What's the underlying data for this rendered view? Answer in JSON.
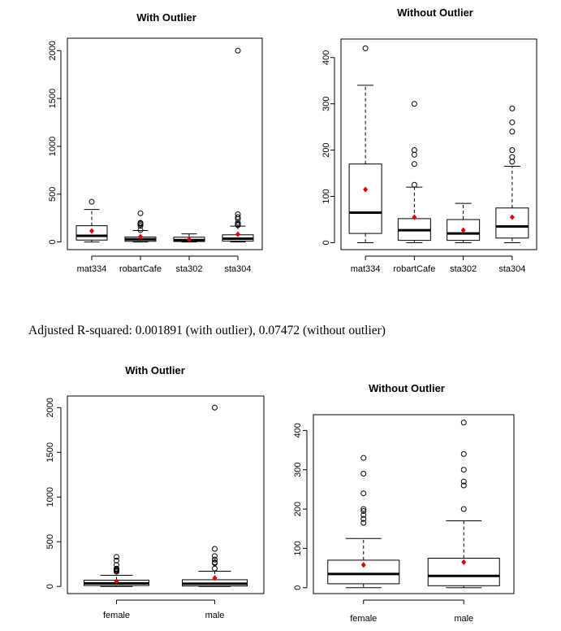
{
  "note": "Adjusted R-squared:  0.001891 (with outlier), 0.07472  (without outlier)",
  "chart_data": [
    {
      "type": "boxplot",
      "title": "With Outlier",
      "categories": [
        "mat334",
        "robartCafe",
        "sta302",
        "sta304"
      ],
      "yticks": [
        0,
        500,
        1000,
        1500,
        2000
      ],
      "ylim": [
        -80,
        2130
      ],
      "boxes": [
        {
          "min": 0,
          "q1": 20,
          "median": 65,
          "q3": 170,
          "max": 340,
          "mean": 115,
          "outliers": [
            420
          ]
        },
        {
          "min": 0,
          "q1": 7,
          "median": 28,
          "q3": 52,
          "max": 120,
          "mean": 55,
          "outliers": [
            125,
            170,
            185,
            195,
            200,
            300
          ]
        },
        {
          "min": 0,
          "q1": 5,
          "median": 20,
          "q3": 50,
          "max": 85,
          "mean": 27,
          "outliers": []
        },
        {
          "min": 0,
          "q1": 10,
          "median": 35,
          "q3": 75,
          "max": 165,
          "mean": 80,
          "outliers": [
            175,
            185,
            200,
            240,
            260,
            290,
            2000
          ]
        }
      ]
    },
    {
      "type": "boxplot",
      "title": "Without Outlier",
      "categories": [
        "mat334",
        "robartCafe",
        "sta302",
        "sta304"
      ],
      "yticks": [
        0,
        100,
        200,
        300,
        400
      ],
      "ylim": [
        -15,
        440
      ],
      "boxes": [
        {
          "min": 0,
          "q1": 20,
          "median": 65,
          "q3": 170,
          "max": 340,
          "mean": 115,
          "outliers": [
            420
          ]
        },
        {
          "min": 0,
          "q1": 5,
          "median": 27,
          "q3": 52,
          "max": 120,
          "mean": 55,
          "outliers": [
            125,
            170,
            190,
            200,
            300
          ]
        },
        {
          "min": 0,
          "q1": 5,
          "median": 20,
          "q3": 50,
          "max": 85,
          "mean": 27,
          "outliers": []
        },
        {
          "min": 0,
          "q1": 10,
          "median": 35,
          "q3": 75,
          "max": 165,
          "mean": 55,
          "outliers": [
            175,
            185,
            200,
            240,
            260,
            290
          ]
        }
      ]
    },
    {
      "type": "boxplot",
      "title": "With Outlier",
      "categories": [
        "female",
        "male"
      ],
      "yticks": [
        0,
        500,
        1000,
        1500,
        2000
      ],
      "ylim": [
        -80,
        2130
      ],
      "boxes": [
        {
          "min": 0,
          "q1": 10,
          "median": 35,
          "q3": 70,
          "max": 125,
          "mean": 58,
          "outliers": [
            165,
            175,
            185,
            195,
            200,
            240,
            290,
            330
          ]
        },
        {
          "min": 0,
          "q1": 5,
          "median": 30,
          "q3": 75,
          "max": 170,
          "mean": 95,
          "outliers": [
            200,
            260,
            270,
            300,
            340,
            420,
            2000
          ]
        }
      ]
    },
    {
      "type": "boxplot",
      "title": "Without Outlier",
      "categories": [
        "female",
        "male"
      ],
      "yticks": [
        0,
        100,
        200,
        300,
        400
      ],
      "ylim": [
        -15,
        440
      ],
      "boxes": [
        {
          "min": 0,
          "q1": 10,
          "median": 35,
          "q3": 70,
          "max": 125,
          "mean": 58,
          "outliers": [
            165,
            175,
            185,
            195,
            200,
            240,
            290,
            330
          ]
        },
        {
          "min": 0,
          "q1": 5,
          "median": 30,
          "q3": 75,
          "max": 170,
          "mean": 65,
          "outliers": [
            200,
            260,
            270,
            300,
            340,
            420
          ]
        }
      ]
    }
  ]
}
